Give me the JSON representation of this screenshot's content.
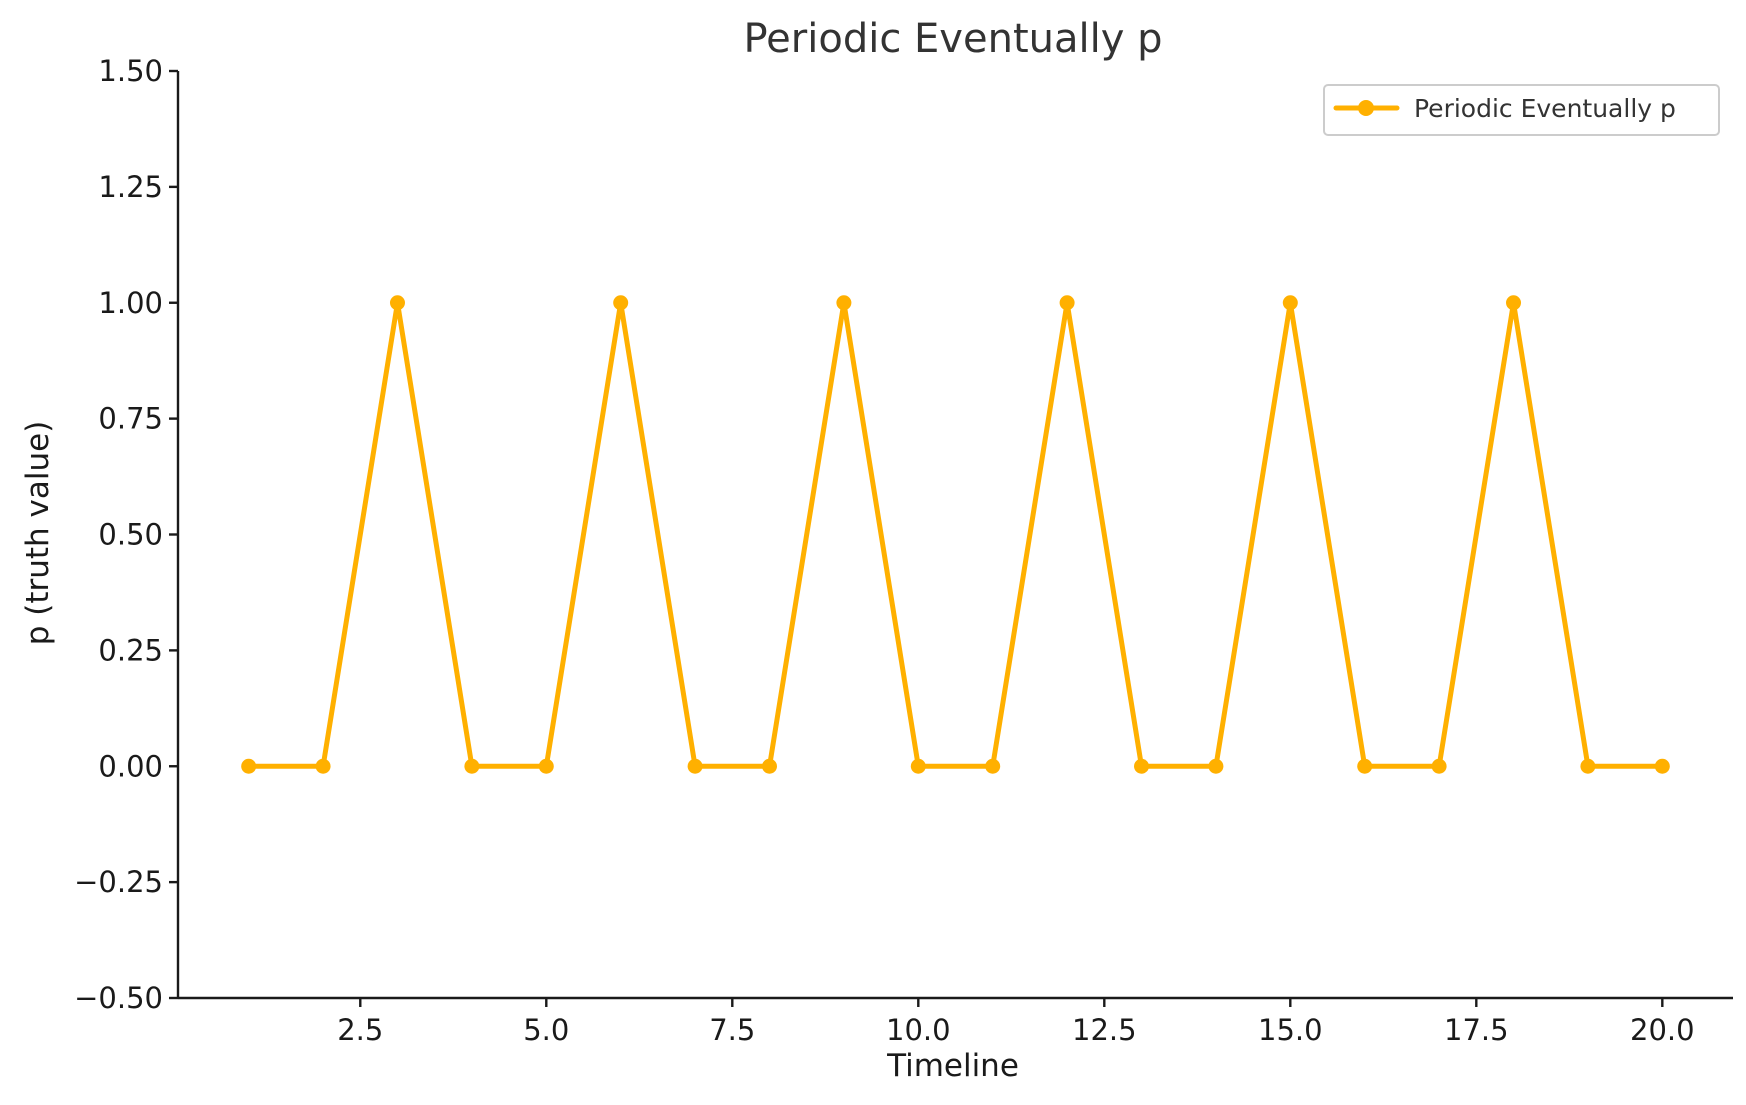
{
  "chart_data": {
    "type": "line",
    "title": "Periodic Eventually p",
    "xlabel": "Timeline",
    "ylabel": "p (truth value)",
    "xlim": [
      0.05,
      20.95
    ],
    "ylim": [
      -0.5,
      1.5
    ],
    "x_ticks": [
      2.5,
      5.0,
      7.5,
      10.0,
      12.5,
      15.0,
      17.5,
      20.0
    ],
    "x_tick_labels": [
      "2.5",
      "5.0",
      "7.5",
      "10.0",
      "12.5",
      "15.0",
      "17.5",
      "20.0"
    ],
    "y_ticks": [
      -0.5,
      -0.25,
      0.0,
      0.25,
      0.5,
      0.75,
      1.0,
      1.25,
      1.5
    ],
    "y_tick_labels": [
      "−0.50",
      "−0.25",
      "0.00",
      "0.25",
      "0.50",
      "0.75",
      "1.00",
      "1.25",
      "1.50"
    ],
    "grid": false,
    "legend_position": "top-right",
    "series": [
      {
        "name": "Periodic Eventually p",
        "color": "#FFB000",
        "marker": "circle",
        "x": [
          1,
          2,
          3,
          4,
          5,
          6,
          7,
          8,
          9,
          10,
          11,
          12,
          13,
          14,
          15,
          16,
          17,
          18,
          19,
          20
        ],
        "y": [
          0,
          0,
          1,
          0,
          0,
          1,
          0,
          0,
          1,
          0,
          0,
          1,
          0,
          0,
          1,
          0,
          0,
          1,
          0,
          0
        ]
      }
    ]
  }
}
